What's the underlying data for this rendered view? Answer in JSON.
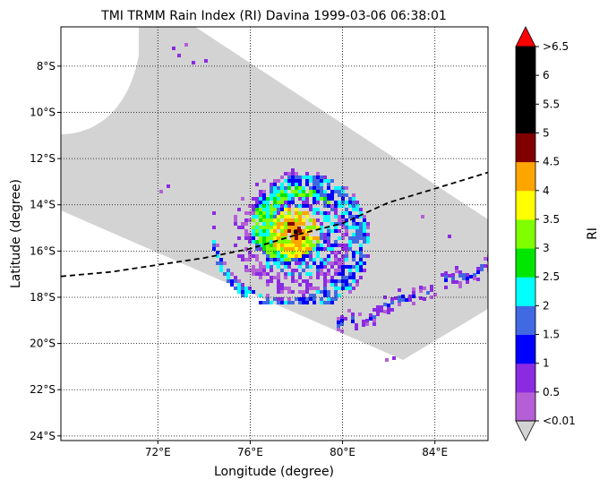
{
  "chart_data": {
    "type": "heatmap",
    "title": "TMI TRMM Rain Index (RI) Davina 1999-03-06 06:38:01",
    "xlabel": "Longitude (degree)",
    "ylabel": "Latitude (degree)",
    "xlim": [
      67.8,
      86.3
    ],
    "ylim": [
      -24.2,
      -6.3
    ],
    "x_ticks": [
      {
        "value": 72,
        "label": "72°E"
      },
      {
        "value": 76,
        "label": "76°E"
      },
      {
        "value": 80,
        "label": "80°E"
      },
      {
        "value": 84,
        "label": "84°E"
      }
    ],
    "y_ticks": [
      {
        "value": -8,
        "label": "8°S"
      },
      {
        "value": -10,
        "label": "10°S"
      },
      {
        "value": -12,
        "label": "12°S"
      },
      {
        "value": -14,
        "label": "14°S"
      },
      {
        "value": -16,
        "label": "16°S"
      },
      {
        "value": -18,
        "label": "18°S"
      },
      {
        "value": -20,
        "label": "20°S"
      },
      {
        "value": -22,
        "label": "22°S"
      },
      {
        "value": -24,
        "label": "24°S"
      }
    ],
    "grid": true,
    "track": [
      [
        67.8,
        -17.1
      ],
      [
        70,
        -16.9
      ],
      [
        72,
        -16.6
      ],
      [
        74,
        -16.3
      ],
      [
        76,
        -15.9
      ],
      [
        78,
        -15.3
      ],
      [
        80,
        -14.8
      ],
      [
        82,
        -13.9
      ],
      [
        84,
        -13.3
      ],
      [
        86.3,
        -12.6
      ]
    ],
    "storm_center": [
      77.9,
      -15.1
    ],
    "colorbar": {
      "label": "RI",
      "bounds": [
        0.01,
        0.5,
        1,
        1.5,
        2,
        2.5,
        3,
        3.5,
        4,
        4.5,
        5,
        5.5,
        6,
        6.5
      ],
      "tick_labels": [
        "<0.01",
        "0.5",
        "1",
        "1.5",
        "2",
        "2.5",
        "3",
        "3.5",
        "4",
        "4.5",
        "5",
        "5.5",
        "6",
        ">6.5"
      ],
      "colors": [
        "#b45fd6",
        "#8a2be2",
        "#0000ff",
        "#4169e1",
        "#00ffff",
        "#00e600",
        "#7fff00",
        "#ffff00",
        "#ffa500",
        "#800000",
        "#000000",
        "#000000",
        "#000000"
      ],
      "under_color": "#d3d3d3",
      "over_color": "#ff0000"
    }
  }
}
